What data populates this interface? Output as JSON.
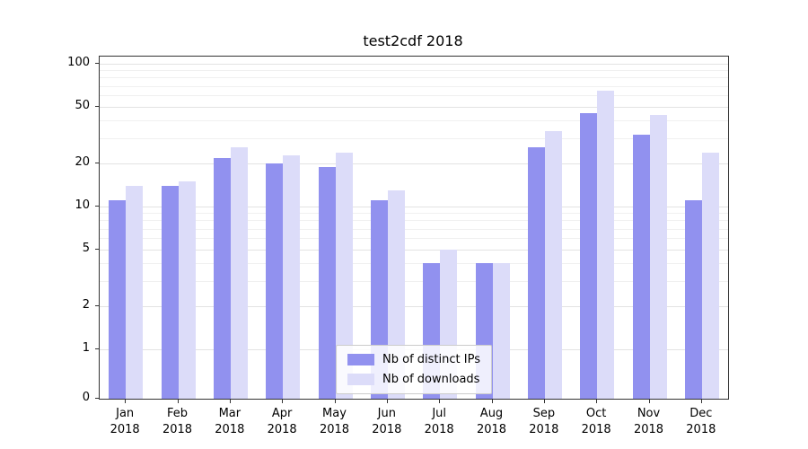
{
  "chart_data": {
    "type": "bar",
    "title": "test2cdf 2018",
    "categories": [
      "Jan 2018",
      "Feb 2018",
      "Mar 2018",
      "Apr 2018",
      "May 2018",
      "Jun 2018",
      "Jul 2018",
      "Aug 2018",
      "Sep 2018",
      "Oct 2018",
      "Nov 2018",
      "Dec 2018"
    ],
    "series": [
      {
        "name": "Nb of distinct IPs",
        "color": "#9191ef",
        "values": [
          11,
          14,
          22,
          20,
          19,
          11,
          4,
          4,
          26,
          45,
          32,
          11
        ]
      },
      {
        "name": "Nb of downloads",
        "color": "#dcdcf9",
        "values": [
          14,
          15,
          26,
          23,
          24,
          13,
          5,
          4,
          34,
          65,
          44,
          24
        ]
      }
    ],
    "yscale": "symlog",
    "ylim": [
      0,
      115
    ],
    "yticks": [
      0,
      1,
      2,
      5,
      10,
      20,
      50,
      100
    ],
    "minor_gridlines": [
      3,
      4,
      6,
      7,
      8,
      9,
      30,
      40,
      60,
      70,
      80,
      90
    ],
    "grid": "horizontal",
    "legend_position": "lower center",
    "colors": {
      "major_grid": "#e3e3e3",
      "minor_grid": "#f0f0f0",
      "axis": "#333333"
    }
  }
}
